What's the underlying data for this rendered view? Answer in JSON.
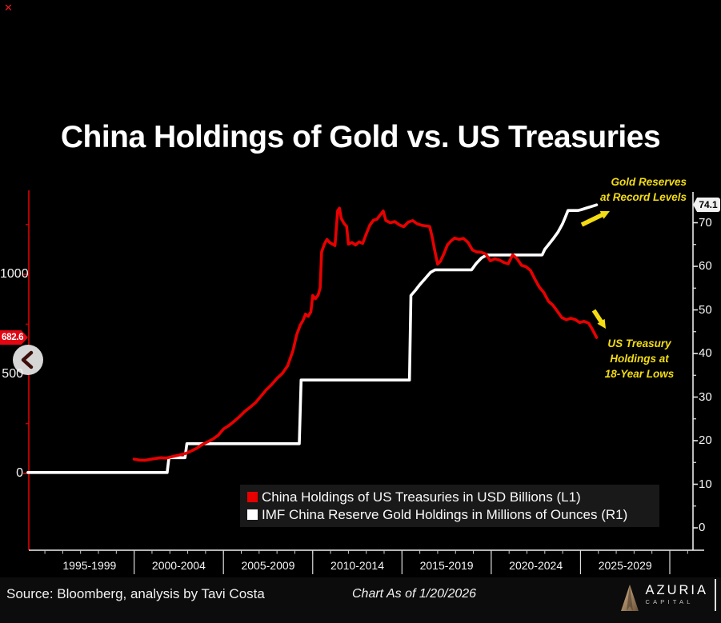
{
  "title": "China Holdings of Gold vs. US Treasuries",
  "controls": {
    "close_icon": "✕"
  },
  "chart_data": {
    "type": "line",
    "title": "China Holdings of Gold vs. US Treasuries",
    "x_axis": {
      "section_labels": [
        "1995-1999",
        "2000-2004",
        "2005-2009",
        "2010-2014",
        "2015-2019",
        "2020-2024",
        "2025-2029"
      ],
      "section_mid_years": [
        1997.5,
        2002.5,
        2007.5,
        2012.5,
        2017.5,
        2022.5,
        2027.5
      ],
      "separator_years": [
        2000,
        2005,
        2010,
        2015,
        2020,
        2025,
        2030
      ],
      "minor_tick_year_start": 1995,
      "minor_tick_year_end": 2031,
      "year_range": [
        1994.1,
        2031.3
      ]
    },
    "left_axis": {
      "name": "L1",
      "tick_values": [
        0,
        500,
        1000
      ],
      "minor_tick_values": [
        250,
        750,
        1250
      ],
      "range": [
        0,
        1410
      ],
      "color": "#e00000",
      "last_value": "682.6",
      "last_value_bg": "#e30613"
    },
    "right_axis": {
      "name": "R1",
      "tick_values": [
        0,
        10,
        20,
        30,
        40,
        50,
        60,
        70
      ],
      "minor_tick_values": [
        5,
        15,
        25,
        35,
        45,
        55,
        65
      ],
      "range": [
        0,
        77
      ],
      "color": "#e8e8e8",
      "last_value": "74.1",
      "last_value_bg": "#f2f2f2"
    },
    "series": [
      {
        "name": "IMF China Reserve Gold Holdings in Millions of Ounces (R1)",
        "axis": "R1",
        "color": "#ffffff",
        "points": [
          [
            1994.05,
            12.7
          ],
          [
            2001.85,
            12.7
          ],
          [
            2001.95,
            16.1
          ],
          [
            2002.85,
            16.1
          ],
          [
            2002.95,
            19.3
          ],
          [
            2009.25,
            19.3
          ],
          [
            2009.35,
            33.9
          ],
          [
            2015.42,
            33.9
          ],
          [
            2015.5,
            53.3
          ],
          [
            2015.75,
            54.5
          ],
          [
            2016.0,
            55.8
          ],
          [
            2016.3,
            57.2
          ],
          [
            2016.6,
            58.6
          ],
          [
            2016.85,
            59.2
          ],
          [
            2018.9,
            59.2
          ],
          [
            2019.15,
            60.6
          ],
          [
            2019.45,
            61.9
          ],
          [
            2019.75,
            62.6
          ],
          [
            2022.85,
            62.6
          ],
          [
            2023.0,
            63.9
          ],
          [
            2023.25,
            65.2
          ],
          [
            2023.5,
            66.5
          ],
          [
            2023.75,
            67.9
          ],
          [
            2024.0,
            69.8
          ],
          [
            2024.15,
            71.3
          ],
          [
            2024.3,
            72.8
          ],
          [
            2024.85,
            72.8
          ],
          [
            2025.05,
            73.0
          ],
          [
            2025.35,
            73.4
          ],
          [
            2025.6,
            73.7
          ],
          [
            2025.9,
            74.1
          ]
        ]
      },
      {
        "name": "China Holdings of US Treasuries in USD Billions (L1)",
        "axis": "L1",
        "color": "#e80000",
        "points": [
          [
            2000.0,
            72
          ],
          [
            2000.3,
            67
          ],
          [
            2000.6,
            66
          ],
          [
            2000.9,
            71
          ],
          [
            2001.2,
            75
          ],
          [
            2001.5,
            79
          ],
          [
            2001.8,
            77
          ],
          [
            2002.1,
            84
          ],
          [
            2002.5,
            92
          ],
          [
            2002.9,
            101
          ],
          [
            2003.2,
            113
          ],
          [
            2003.5,
            126
          ],
          [
            2003.8,
            144
          ],
          [
            2004.1,
            158
          ],
          [
            2004.4,
            172
          ],
          [
            2004.7,
            191
          ],
          [
            2005.0,
            223
          ],
          [
            2005.3,
            240
          ],
          [
            2005.6,
            262
          ],
          [
            2005.9,
            285
          ],
          [
            2006.2,
            312
          ],
          [
            2006.5,
            333
          ],
          [
            2006.8,
            356
          ],
          [
            2007.1,
            388
          ],
          [
            2007.4,
            420
          ],
          [
            2007.7,
            446
          ],
          [
            2008.0,
            477
          ],
          [
            2008.3,
            502
          ],
          [
            2008.6,
            541
          ],
          [
            2008.9,
            618
          ],
          [
            2009.1,
            696
          ],
          [
            2009.3,
            744
          ],
          [
            2009.45,
            767
          ],
          [
            2009.6,
            800
          ],
          [
            2009.75,
            789
          ],
          [
            2009.9,
            812
          ],
          [
            2010.0,
            894
          ],
          [
            2010.15,
            877
          ],
          [
            2010.3,
            895
          ],
          [
            2010.42,
            932
          ],
          [
            2010.5,
            1112
          ],
          [
            2010.65,
            1151
          ],
          [
            2010.8,
            1175
          ],
          [
            2010.95,
            1160
          ],
          [
            2011.1,
            1152
          ],
          [
            2011.25,
            1144
          ],
          [
            2011.4,
            1320
          ],
          [
            2011.5,
            1332
          ],
          [
            2011.6,
            1280
          ],
          [
            2011.75,
            1256
          ],
          [
            2011.9,
            1240
          ],
          [
            2012.0,
            1152
          ],
          [
            2012.2,
            1160
          ],
          [
            2012.4,
            1147
          ],
          [
            2012.6,
            1163
          ],
          [
            2012.8,
            1155
          ],
          [
            2013.0,
            1203
          ],
          [
            2013.2,
            1247
          ],
          [
            2013.4,
            1271
          ],
          [
            2013.6,
            1277
          ],
          [
            2013.8,
            1300
          ],
          [
            2013.95,
            1318
          ],
          [
            2014.1,
            1270
          ],
          [
            2014.35,
            1259
          ],
          [
            2014.6,
            1265
          ],
          [
            2014.85,
            1248
          ],
          [
            2015.1,
            1239
          ],
          [
            2015.35,
            1262
          ],
          [
            2015.6,
            1270
          ],
          [
            2015.85,
            1254
          ],
          [
            2016.1,
            1246
          ],
          [
            2016.35,
            1243
          ],
          [
            2016.55,
            1240
          ],
          [
            2016.7,
            1185
          ],
          [
            2016.85,
            1113
          ],
          [
            2017.0,
            1051
          ],
          [
            2017.15,
            1065
          ],
          [
            2017.35,
            1103
          ],
          [
            2017.55,
            1148
          ],
          [
            2017.75,
            1168
          ],
          [
            2017.95,
            1182
          ],
          [
            2018.2,
            1176
          ],
          [
            2018.45,
            1180
          ],
          [
            2018.7,
            1160
          ],
          [
            2018.95,
            1122
          ],
          [
            2019.2,
            1112
          ],
          [
            2019.45,
            1111
          ],
          [
            2019.7,
            1101
          ],
          [
            2019.95,
            1068
          ],
          [
            2020.2,
            1078
          ],
          [
            2020.45,
            1072
          ],
          [
            2020.7,
            1060
          ],
          [
            2020.95,
            1053
          ],
          [
            2021.2,
            1098
          ],
          [
            2021.45,
            1078
          ],
          [
            2021.7,
            1045
          ],
          [
            2021.95,
            1038
          ],
          [
            2022.2,
            1019
          ],
          [
            2022.45,
            975
          ],
          [
            2022.7,
            935
          ],
          [
            2022.95,
            908
          ],
          [
            2023.2,
            865
          ],
          [
            2023.45,
            845
          ],
          [
            2023.7,
            815
          ],
          [
            2023.95,
            783
          ],
          [
            2024.2,
            772
          ],
          [
            2024.45,
            779
          ],
          [
            2024.7,
            773
          ],
          [
            2024.95,
            758
          ],
          [
            2025.2,
            764
          ],
          [
            2025.45,
            755
          ],
          [
            2025.65,
            726
          ],
          [
            2025.8,
            700
          ],
          [
            2025.9,
            682.6
          ]
        ]
      }
    ],
    "annotations": [
      {
        "lines": [
          "Gold Reserves",
          "at Record Levels"
        ],
        "color": "#f3dc13",
        "arrow": {
          "from": [
            727,
            281
          ],
          "to": [
            762,
            264
          ]
        }
      },
      {
        "lines": [
          "US Treasury",
          "Holdings at",
          "18-Year Lows"
        ],
        "color": "#f3dc13",
        "arrow": {
          "from": [
            742,
            388
          ],
          "to": [
            757,
            411
          ]
        }
      }
    ],
    "legend_position": "bottom-center-box",
    "xlabel": "",
    "ylabel": ""
  },
  "legend": {
    "items": [
      {
        "color": "#e80000",
        "label": "China Holdings of US Treasuries in USD Billions (L1)"
      },
      {
        "color": "#ffffff",
        "label": "IMF China Reserve Gold Holdings in Millions of Ounces (R1)"
      }
    ]
  },
  "footer": {
    "source": "Source: Bloomberg, analysis by Tavi Costa",
    "as_of": "Chart As of 1/20/2026",
    "brand_name": "AZURIA",
    "brand_sub": "CAPITAL"
  }
}
